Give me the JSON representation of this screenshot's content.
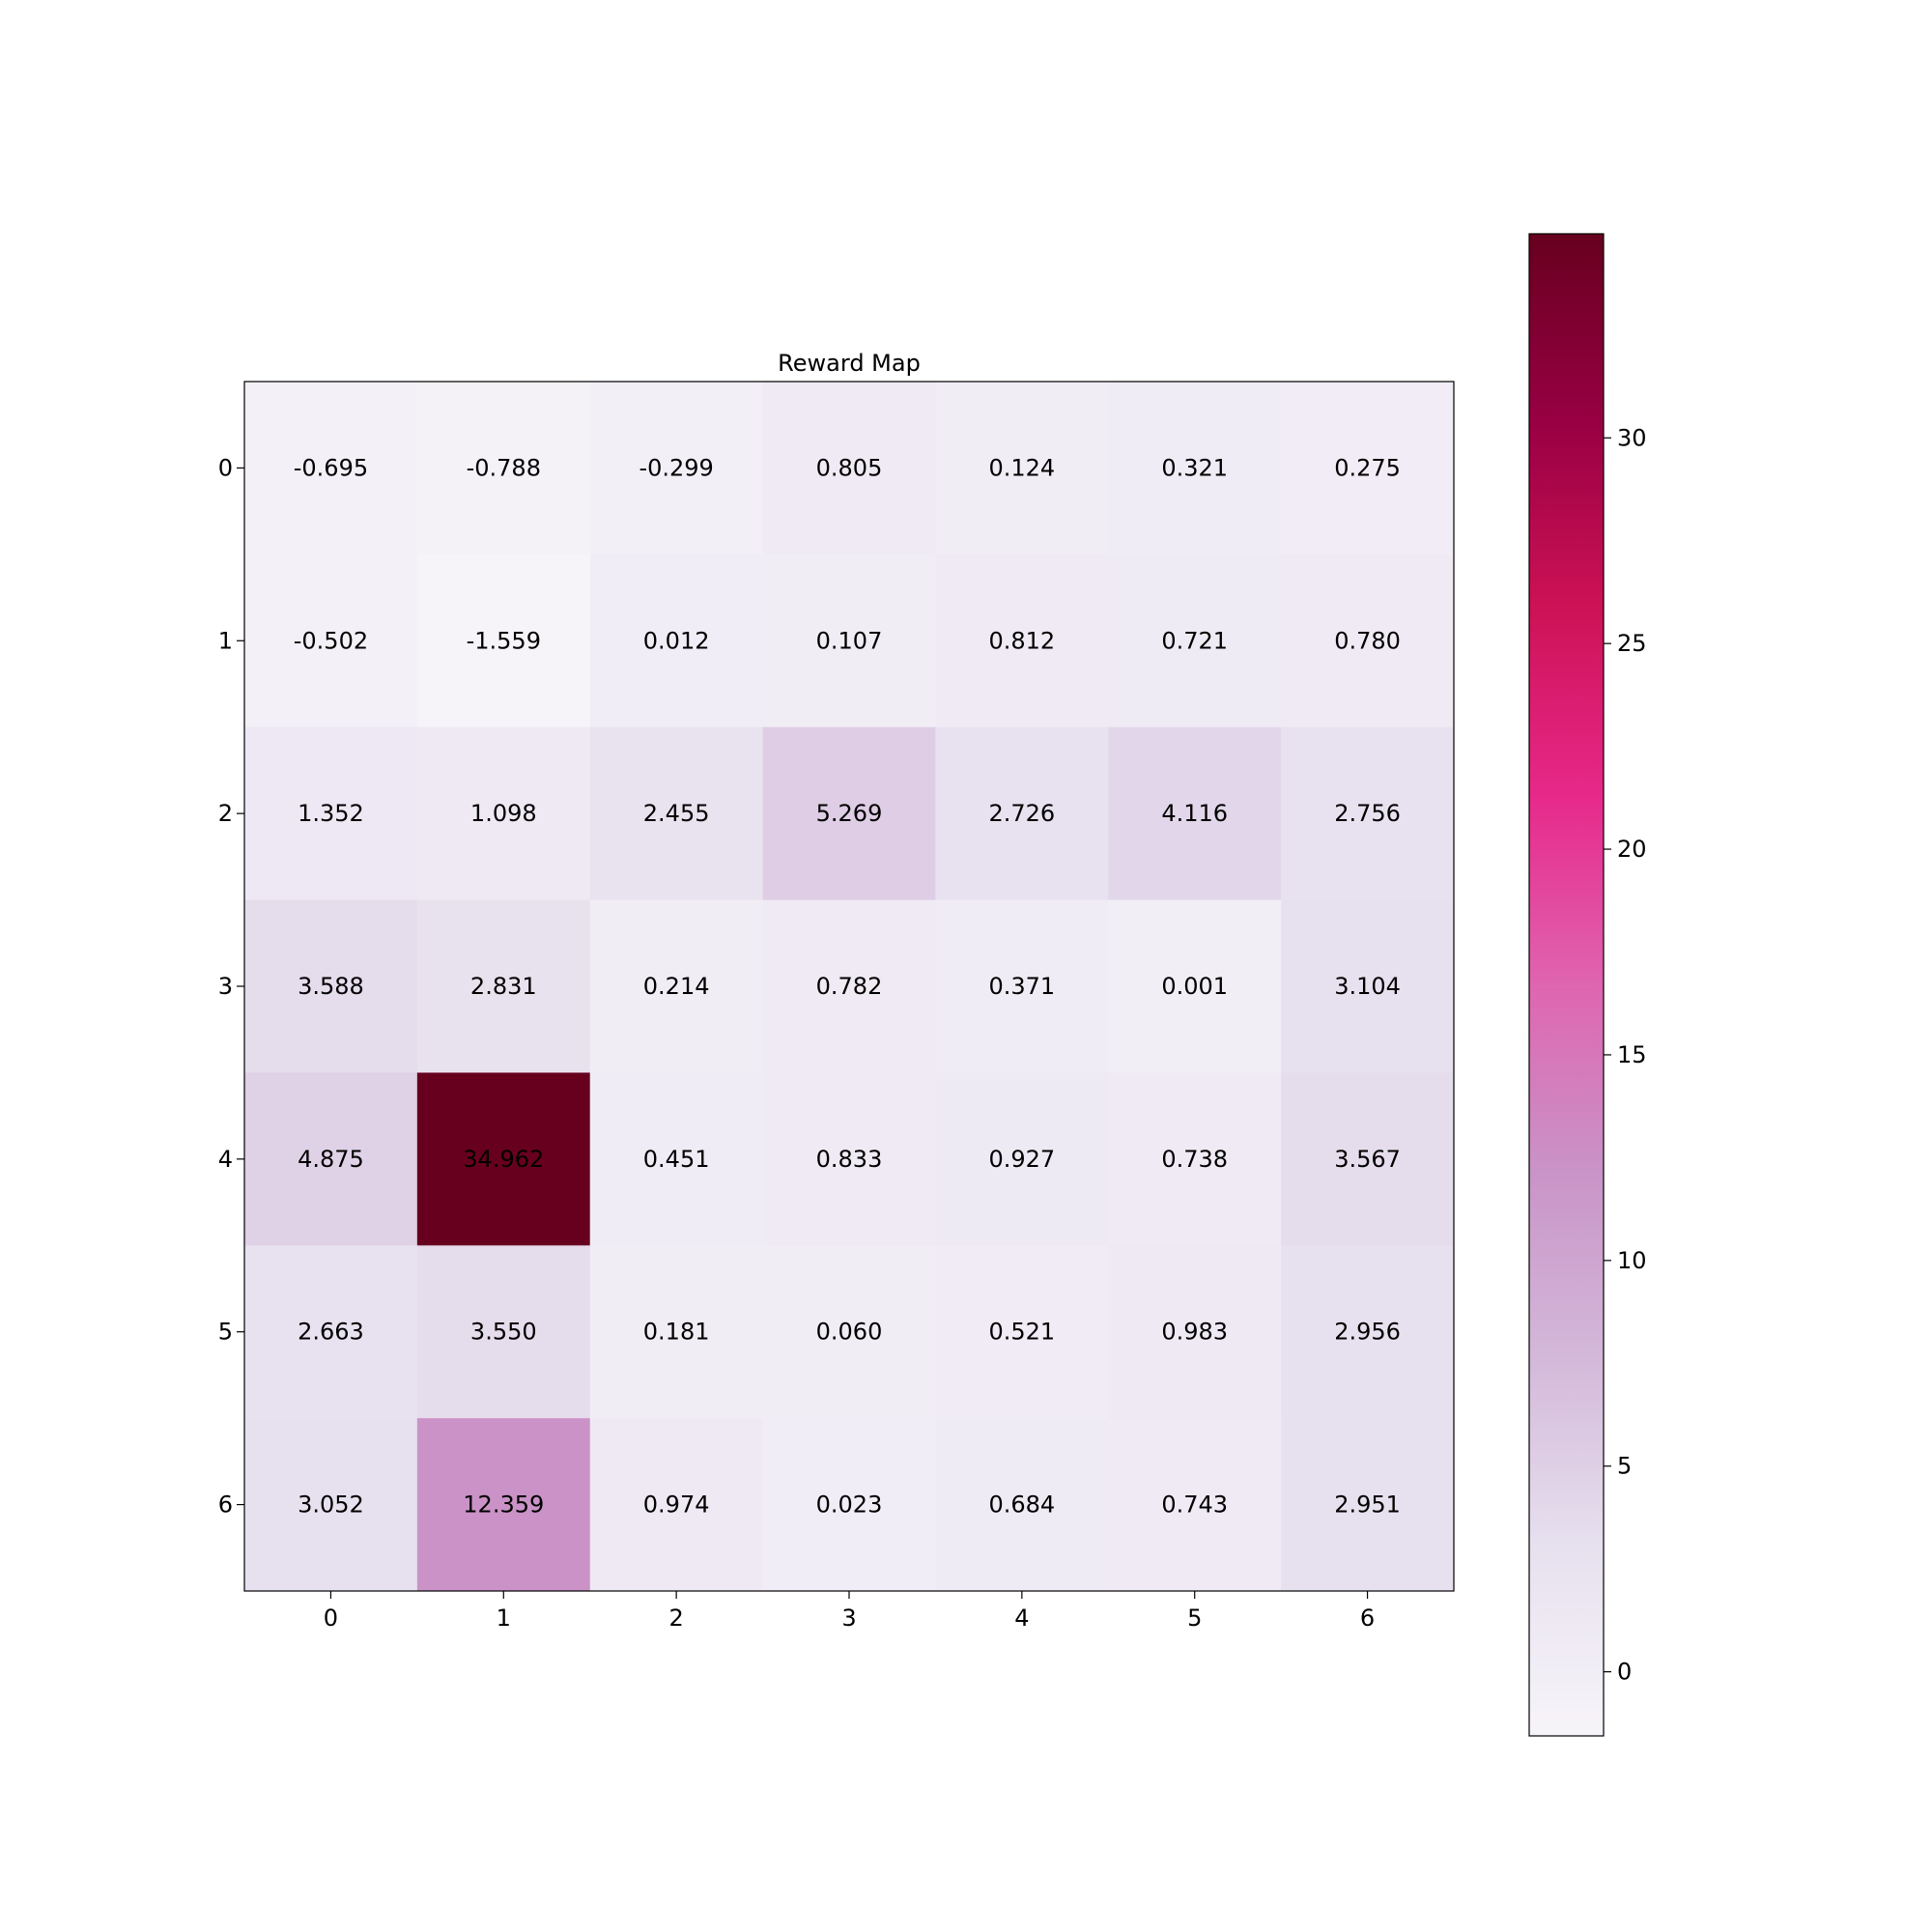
{
  "chart_data": {
    "type": "heatmap",
    "title": "Reward Map",
    "x_ticks": [
      "0",
      "1",
      "2",
      "3",
      "4",
      "5",
      "6"
    ],
    "y_ticks": [
      "0",
      "1",
      "2",
      "3",
      "4",
      "5",
      "6"
    ],
    "values": [
      [
        -0.695,
        -0.788,
        -0.299,
        0.805,
        0.124,
        0.321,
        0.275
      ],
      [
        -0.502,
        -1.559,
        0.012,
        0.107,
        0.812,
        0.721,
        0.78
      ],
      [
        1.352,
        1.098,
        2.455,
        5.269,
        2.726,
        4.116,
        2.756
      ],
      [
        3.588,
        2.831,
        0.214,
        0.782,
        0.371,
        0.001,
        3.104
      ],
      [
        4.875,
        34.962,
        0.451,
        0.833,
        0.927,
        0.738,
        3.567
      ],
      [
        2.663,
        3.55,
        0.181,
        0.06,
        0.521,
        0.983,
        2.956
      ],
      [
        3.052,
        12.359,
        0.974,
        0.023,
        0.684,
        0.743,
        2.951
      ]
    ],
    "labels": [
      [
        "-0.695",
        "-0.788",
        "-0.299",
        "0.805",
        "0.124",
        "0.321",
        "0.275"
      ],
      [
        "-0.502",
        "-1.559",
        "0.012",
        "0.107",
        "0.812",
        "0.721",
        "0.780"
      ],
      [
        "1.352",
        "1.098",
        "2.455",
        "5.269",
        "2.726",
        "4.116",
        "2.756"
      ],
      [
        "3.588",
        "2.831",
        "0.214",
        "0.782",
        "0.371",
        "0.001",
        "3.104"
      ],
      [
        "4.875",
        "34.962",
        "0.451",
        "0.833",
        "0.927",
        "0.738",
        "3.567"
      ],
      [
        "2.663",
        "3.550",
        "0.181",
        "0.060",
        "0.521",
        "0.983",
        "2.956"
      ],
      [
        "3.052",
        "12.359",
        "0.974",
        "0.023",
        "0.684",
        "0.743",
        "2.951"
      ]
    ],
    "colorbar": {
      "min": -1.559,
      "max": 34.962,
      "ticks": [
        0,
        5,
        10,
        15,
        20,
        25,
        30
      ],
      "tick_labels": [
        "0",
        "5",
        "10",
        "15",
        "20",
        "25",
        "30"
      ],
      "colormap": "PuRd"
    },
    "colormap_stops": [
      "#f7f4f9",
      "#e7e1ef",
      "#d4b9da",
      "#c994c7",
      "#df65b0",
      "#e7298a",
      "#ce1256",
      "#980043",
      "#67001f"
    ],
    "grid": false
  }
}
